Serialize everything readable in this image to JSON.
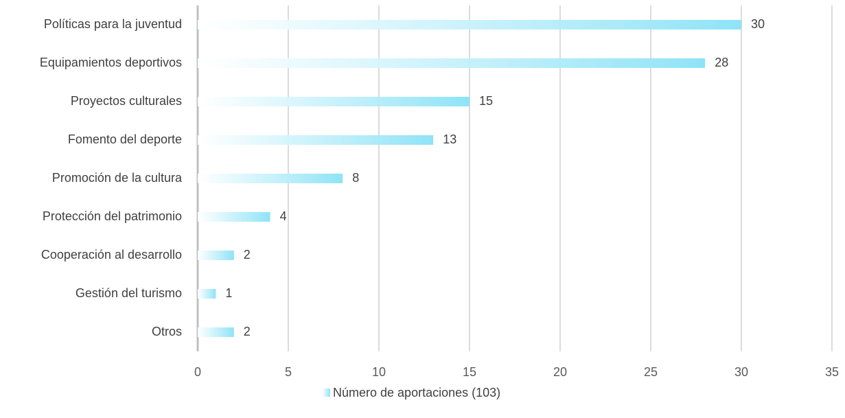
{
  "chart_data": {
    "type": "bar",
    "orientation": "horizontal",
    "categories": [
      "Políticas para la juventud",
      "Equipamientos deportivos",
      "Proyectos culturales",
      "Fomento del deporte",
      "Promoción de la cultura",
      "Protección del patrimonio",
      "Cooperación al desarrollo",
      "Gestión del turismo",
      "Otros"
    ],
    "series": [
      {
        "name": "Número de aportaciones (103)",
        "color": "#8fe3f7",
        "values": [
          30,
          28,
          15,
          13,
          8,
          4,
          2,
          1,
          2
        ]
      }
    ],
    "xlim": [
      0,
      35
    ],
    "xticks": [
      0,
      5,
      10,
      15,
      20,
      25,
      30,
      35
    ],
    "grid": true,
    "legend": "bottom"
  }
}
